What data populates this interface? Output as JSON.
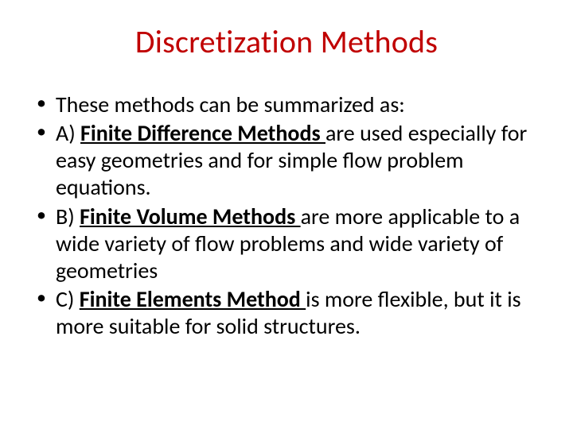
{
  "slide": {
    "title": "Discretization Methods",
    "title_color": "#c00000",
    "title_fontsize": 40,
    "body_fontsize": 28,
    "body_color": "#000000",
    "background_color": "#ffffff",
    "bullets": [
      {
        "pre": "These methods can be summarized as:",
        "emph": "",
        "post": ""
      },
      {
        "pre": "A) ",
        "emph": "Finite Difference Methods ",
        "post": "are used especially for easy geometries and for simple flow problem equations."
      },
      {
        "pre": "B) ",
        "emph": "Finite Volume Methods ",
        "post": "are more applicable to a wide variety of flow problems and wide variety of geometries"
      },
      {
        "pre": "C) ",
        "emph": "Finite Elements Method ",
        "post": "is more flexible, but it is more suitable for solid structures."
      }
    ]
  }
}
